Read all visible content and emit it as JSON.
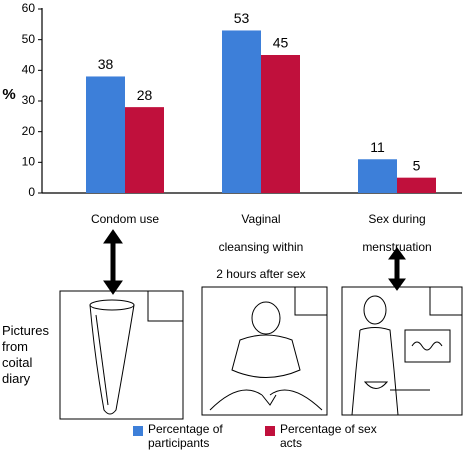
{
  "chart_data": {
    "type": "bar",
    "y_label": "%",
    "categories": [
      "Condom use",
      "Vaginal\ncleansing within\n2 hours after sex",
      "Sex during\nmenstruation"
    ],
    "series": [
      {
        "name": "Percentage of\nparticipants",
        "color": "#3d7fd9",
        "values": [
          38,
          53,
          11
        ]
      },
      {
        "name": "Percentage of sex\nacts",
        "color": "#c0103c",
        "values": [
          28,
          45,
          5
        ]
      }
    ],
    "ylim": [
      0,
      60
    ],
    "yticks": [
      0,
      10,
      20,
      30,
      40,
      50,
      60
    ]
  },
  "pictures_label": "Pictures\nfrom\ncoital\ndiary"
}
